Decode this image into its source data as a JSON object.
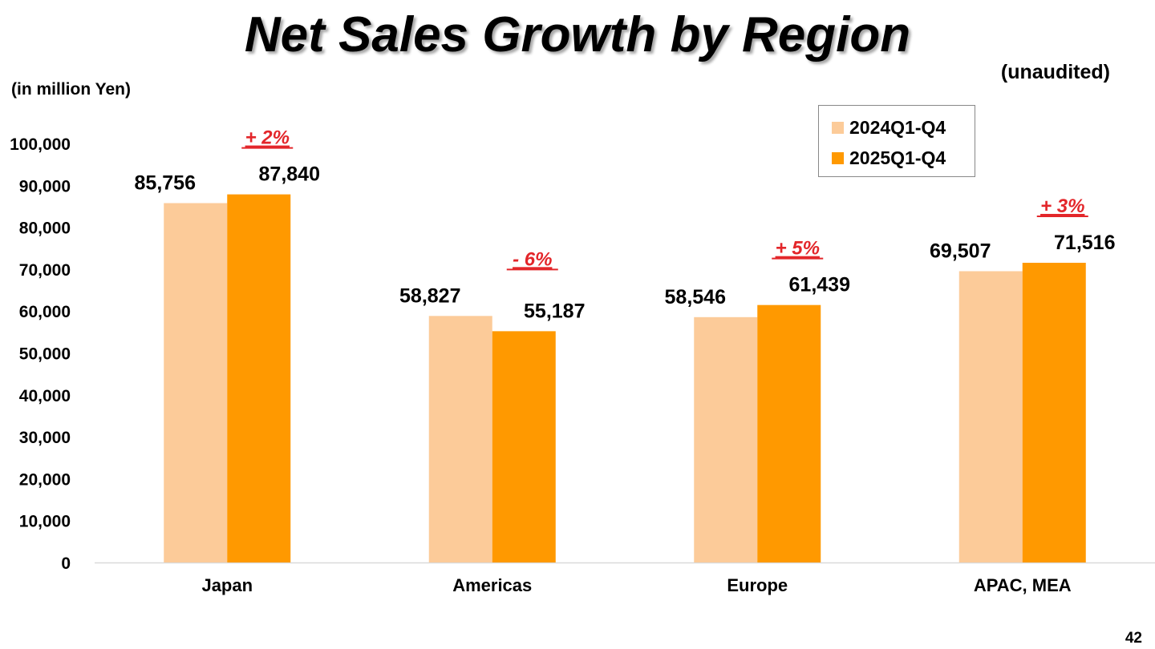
{
  "header": {
    "title": "Net Sales Growth by Region",
    "unaudited": "(unaudited)",
    "units": "(in million Yen)"
  },
  "footer": {
    "page_number": "42"
  },
  "colors": {
    "series_2024": "#FCCB99",
    "series_2025": "#FF9900",
    "growth_label": "#E3262A",
    "axis_line": "#D9D9D9"
  },
  "chart_data": {
    "type": "bar",
    "categories": [
      "Japan",
      "Americas",
      "Europe",
      "APAC, MEA"
    ],
    "series": [
      {
        "name": "2024Q1-Q4",
        "values": [
          85756,
          58827,
          58546,
          69507
        ],
        "labels": [
          "85,756",
          "58,827",
          "58,546",
          "69,507"
        ]
      },
      {
        "name": "2025Q1-Q4",
        "values": [
          87840,
          55187,
          61439,
          71516
        ],
        "labels": [
          "87,840",
          "55,187",
          "61,439",
          "71,516"
        ]
      }
    ],
    "growth_labels": [
      "+ 2%",
      "- 6%",
      "+ 5%",
      "+ 3%"
    ],
    "ylim": [
      0,
      100000
    ],
    "yticks": [
      0,
      10000,
      20000,
      30000,
      40000,
      50000,
      60000,
      70000,
      80000,
      90000,
      100000
    ],
    "ytick_labels": [
      "0",
      "10,000",
      "20,000",
      "30,000",
      "40,000",
      "50,000",
      "60,000",
      "70,000",
      "80,000",
      "90,000",
      "100,000"
    ],
    "grid": false,
    "legend_position": "top-right"
  }
}
